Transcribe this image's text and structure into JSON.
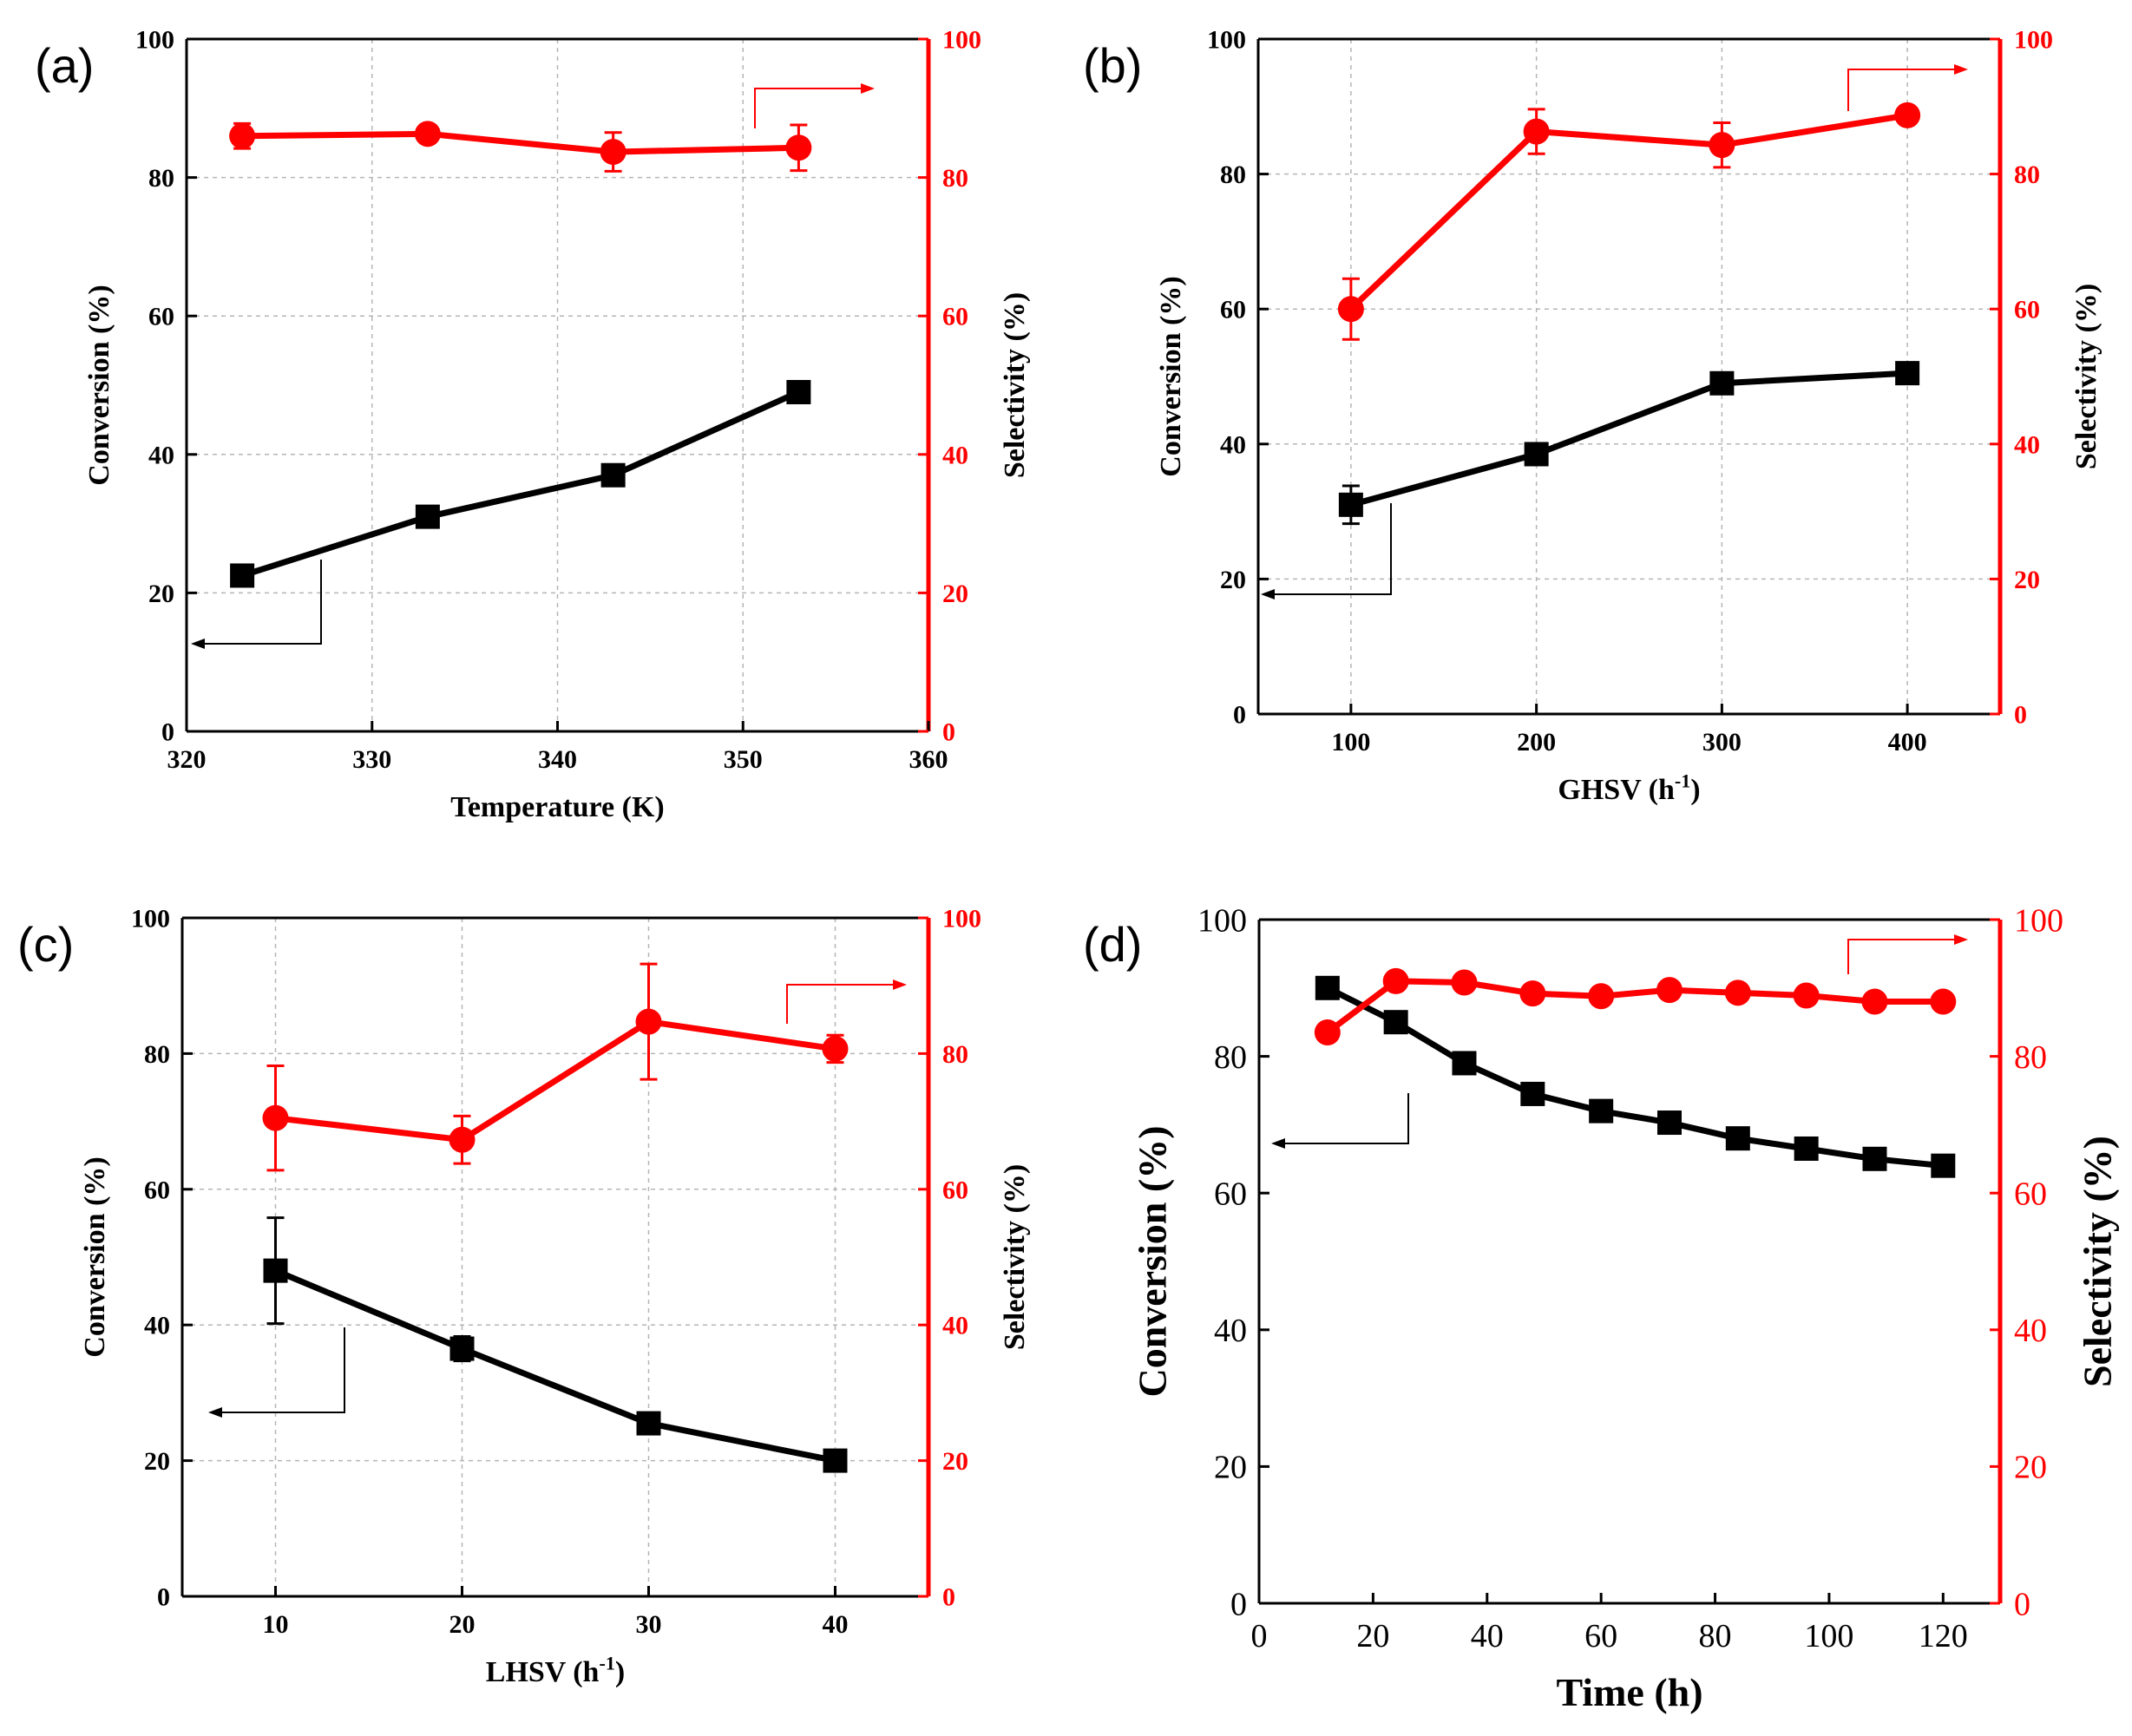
{
  "colors": {
    "conversion": "#000000",
    "selectivity": "#ff0000"
  },
  "chart_data": [
    {
      "type": "line",
      "panel_label": "(a)",
      "title": "",
      "xlabel": "Temperature (K)",
      "ylabel": "Conversion (%)",
      "y2label": "Selectivity (%)",
      "xlim": [
        320,
        360
      ],
      "ylim": [
        0,
        100
      ],
      "y2lim": [
        0,
        100
      ],
      "xticks": [
        "320",
        "330",
        "340",
        "350",
        "360"
      ],
      "yticks": [
        "0",
        "20",
        "40",
        "60",
        "80",
        "100"
      ],
      "y2ticks": [
        "0",
        "20",
        "40",
        "60",
        "80",
        "100"
      ],
      "grid": true,
      "series": [
        {
          "name": "Conversion",
          "axis": "left",
          "marker": "square",
          "x": [
            323,
            333,
            343,
            353
          ],
          "y": [
            22.5,
            31,
            37,
            49
          ],
          "err": [
            0,
            0,
            0,
            0
          ]
        },
        {
          "name": "Selectivity",
          "axis": "right",
          "marker": "circle",
          "x": [
            323,
            333,
            343,
            353
          ],
          "y": [
            86,
            86.3,
            83.7,
            84.3
          ],
          "err": [
            1.8,
            1.2,
            2.8,
            3.3
          ]
        }
      ]
    },
    {
      "type": "line",
      "panel_label": "(b)",
      "title": "",
      "xlabel": "GHSV (h",
      "xlabel_sup": "-1",
      "xlabel_end": ")",
      "ylabel": "Conversion (%)",
      "y2label": "Selectivity (%)",
      "xlim": [
        50,
        450
      ],
      "ylim": [
        0,
        100
      ],
      "y2lim": [
        0,
        100
      ],
      "xticks": [
        "100",
        "200",
        "300",
        "400"
      ],
      "yticks": [
        "0",
        "20",
        "40",
        "60",
        "80",
        "100"
      ],
      "y2ticks": [
        "0",
        "20",
        "40",
        "60",
        "80",
        "100"
      ],
      "grid": true,
      "series": [
        {
          "name": "Conversion",
          "axis": "left",
          "marker": "square",
          "x": [
            100,
            200,
            300,
            400
          ],
          "y": [
            31,
            38.5,
            49,
            50.5
          ],
          "err": [
            2.8,
            1,
            1.2,
            0.8
          ]
        },
        {
          "name": "Selectivity",
          "axis": "right",
          "marker": "circle",
          "x": [
            100,
            200,
            300,
            400
          ],
          "y": [
            60,
            86.3,
            84.3,
            88.7
          ],
          "err": [
            4.5,
            3.3,
            3.3,
            0.8
          ]
        }
      ]
    },
    {
      "type": "line",
      "panel_label": "(c)",
      "title": "",
      "xlabel": "LHSV (h",
      "xlabel_sup": "-1",
      "xlabel_end": ")",
      "ylabel": "Conversion (%)",
      "y2label": "Selectivity (%)",
      "xlim": [
        5,
        45
      ],
      "ylim": [
        0,
        100
      ],
      "y2lim": [
        0,
        100
      ],
      "xticks": [
        "10",
        "20",
        "30",
        "40"
      ],
      "yticks": [
        "0",
        "20",
        "40",
        "60",
        "80",
        "100"
      ],
      "y2ticks": [
        "0",
        "20",
        "40",
        "60",
        "80",
        "100"
      ],
      "grid": true,
      "series": [
        {
          "name": "Conversion",
          "axis": "left",
          "marker": "square",
          "x": [
            10,
            20,
            30,
            40
          ],
          "y": [
            48,
            36.5,
            25.5,
            20
          ],
          "err": [
            7.8,
            1.8,
            1.5,
            0
          ]
        },
        {
          "name": "Selectivity",
          "axis": "right",
          "marker": "circle",
          "x": [
            10,
            20,
            30,
            40
          ],
          "y": [
            70.5,
            67.3,
            84.7,
            80.7
          ],
          "err": [
            7.7,
            3.5,
            8.5,
            2
          ]
        }
      ]
    },
    {
      "type": "line",
      "panel_label": "(d)",
      "title": "",
      "xlabel": "Time (h)",
      "ylabel": "Conversion (%)",
      "y2label": "Selectivity (%)",
      "xlim": [
        0,
        130
      ],
      "ylim": [
        0,
        100
      ],
      "y2lim": [
        0,
        100
      ],
      "xticks": [
        "0",
        "20",
        "40",
        "60",
        "80",
        "100",
        "120"
      ],
      "yticks": [
        "0",
        "20",
        "40",
        "60",
        "80",
        "100"
      ],
      "y2ticks": [
        "0",
        "20",
        "40",
        "60",
        "80",
        "100"
      ],
      "grid": false,
      "series": [
        {
          "name": "Conversion",
          "axis": "left",
          "marker": "square",
          "x": [
            12,
            24,
            36,
            48,
            60,
            72,
            84,
            96,
            108,
            120
          ],
          "y": [
            90,
            85,
            79,
            74.5,
            72,
            70.3,
            68,
            66.5,
            65,
            64
          ],
          "err": [
            0,
            0,
            0,
            0,
            0,
            0,
            0,
            0,
            0,
            0
          ]
        },
        {
          "name": "Selectivity",
          "axis": "right",
          "marker": "circle",
          "x": [
            12,
            24,
            36,
            48,
            60,
            72,
            84,
            96,
            108,
            120
          ],
          "y": [
            83.5,
            91,
            90.8,
            89.2,
            88.8,
            89.7,
            89.3,
            88.9,
            88,
            88
          ],
          "err": [
            0,
            0,
            0,
            0,
            0,
            0,
            0,
            0,
            0,
            0
          ]
        }
      ]
    }
  ]
}
